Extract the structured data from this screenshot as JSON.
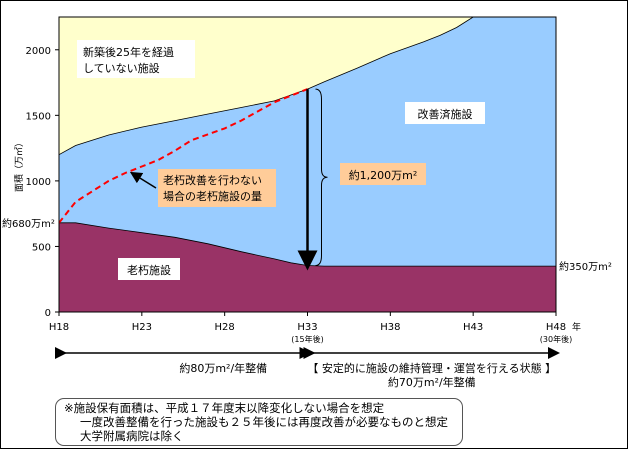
{
  "chart_data": {
    "type": "area",
    "ylabel": "面積（万㎡）",
    "ylim": [
      0,
      2250
    ],
    "y_ticks": [
      "0",
      "500",
      "1000",
      "1500",
      "2000"
    ],
    "x_ticks": [
      {
        "label": "H18",
        "sub": ""
      },
      {
        "label": "H23",
        "sub": ""
      },
      {
        "label": "H28",
        "sub": ""
      },
      {
        "label": "H33",
        "sub": "(15年後)"
      },
      {
        "label": "H38",
        "sub": ""
      },
      {
        "label": "H43",
        "sub": ""
      },
      {
        "label": "H48",
        "sub": "(30年後)"
      }
    ],
    "x_unit": "年",
    "series": [
      {
        "name": "老朽施設",
        "color": "#993366",
        "points": [
          [
            18,
            680
          ],
          [
            19,
            680
          ],
          [
            21,
            640
          ],
          [
            23,
            605
          ],
          [
            25,
            570
          ],
          [
            27,
            520
          ],
          [
            29,
            460
          ],
          [
            31,
            405
          ],
          [
            32,
            375
          ],
          [
            33,
            355
          ],
          [
            34,
            350
          ],
          [
            48,
            350
          ]
        ]
      },
      {
        "name": "改善済施設",
        "color": "#99ccff",
        "points": [
          [
            18,
            1200
          ],
          [
            19,
            1270
          ],
          [
            21,
            1350
          ],
          [
            23,
            1410
          ],
          [
            25,
            1460
          ],
          [
            27,
            1510
          ],
          [
            29,
            1560
          ],
          [
            31,
            1610
          ],
          [
            33,
            1700
          ],
          [
            34,
            1755
          ],
          [
            36,
            1860
          ],
          [
            38,
            1970
          ],
          [
            40,
            2060
          ],
          [
            41,
            2110
          ],
          [
            42,
            2170
          ],
          [
            43,
            2250
          ]
        ]
      },
      {
        "name": "新築後25年を経過していない施設",
        "color": "#ffffcc"
      }
    ],
    "dashed_line": {
      "name": "老朽改善を行わない場合の老朽施設の量",
      "color": "#ff0000",
      "points": [
        [
          18,
          680
        ],
        [
          19,
          840
        ],
        [
          20,
          920
        ],
        [
          21,
          1000
        ],
        [
          22,
          1060
        ],
        [
          23,
          1110
        ],
        [
          24,
          1160
        ],
        [
          25,
          1230
        ],
        [
          26,
          1310
        ],
        [
          27,
          1355
        ],
        [
          28,
          1400
        ],
        [
          29,
          1460
        ],
        [
          30,
          1530
        ],
        [
          31,
          1600
        ],
        [
          32,
          1650
        ],
        [
          33,
          1700
        ]
      ]
    },
    "annotations": {
      "new_label_1": "新築後25年を経過",
      "new_label_2": "していない施設",
      "improved_label": "改善済施設",
      "old_label": "老朽施設",
      "dashed_label_1": "老朽改善を行わない",
      "dashed_label_2": "場合の老朽施設の量",
      "gap_label": "約1,200万m²",
      "start_label": "約680万m²",
      "end_label": "約350万m²"
    },
    "periods": {
      "left_text": "約80万m²/年整備",
      "right_text_1": "【 安定的に施設の維持管理・運営を行える状態 】",
      "right_text_2": "約70万m²/年整備"
    }
  },
  "notes": {
    "line1": "※施設保有面積は、平成１７年度末以降変化しない場合を想定",
    "line2": "一度改善整備を行った施設も２５年後には再度改善が必要なものと想定",
    "line3": "大学附属病院は除く"
  }
}
